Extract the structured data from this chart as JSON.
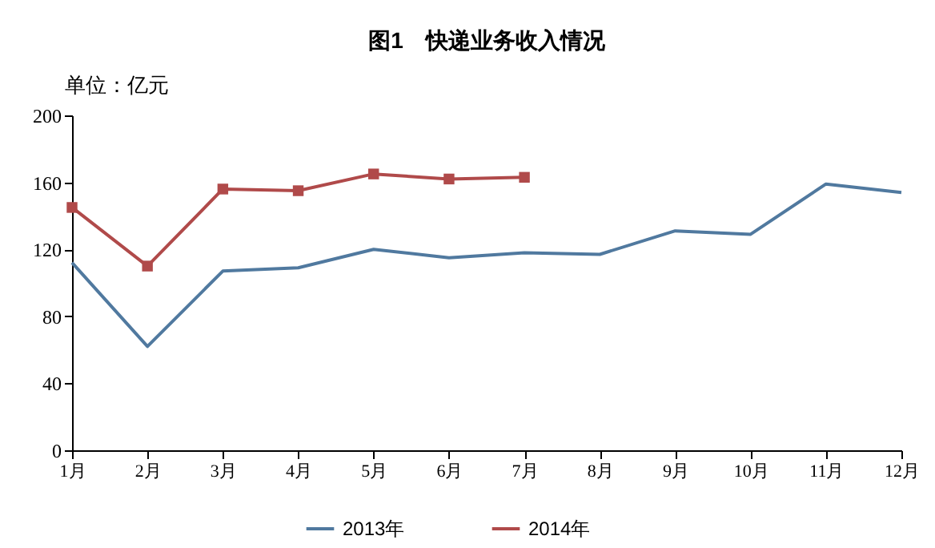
{
  "chart_data": {
    "type": "line",
    "title": "图1　快递业务收入情况",
    "ylabel": "单位：亿元",
    "categories": [
      "1月",
      "2月",
      "3月",
      "4月",
      "5月",
      "6月",
      "7月",
      "8月",
      "9月",
      "10月",
      "11月",
      "12月"
    ],
    "series": [
      {
        "name": "2013年",
        "color": "#50799f",
        "marker": "none",
        "values": [
          112,
          62,
          107,
          109,
          120,
          115,
          118,
          117,
          131,
          129,
          159,
          154
        ]
      },
      {
        "name": "2014年",
        "color": "#b04a4a",
        "marker": "square",
        "values": [
          145,
          110,
          156,
          155,
          165,
          162,
          163,
          null,
          null,
          null,
          null,
          null
        ]
      }
    ],
    "ylim": [
      0,
      200
    ],
    "yticks": [
      0,
      40,
      80,
      120,
      160,
      200
    ],
    "grid": false,
    "legend": "bottom"
  }
}
